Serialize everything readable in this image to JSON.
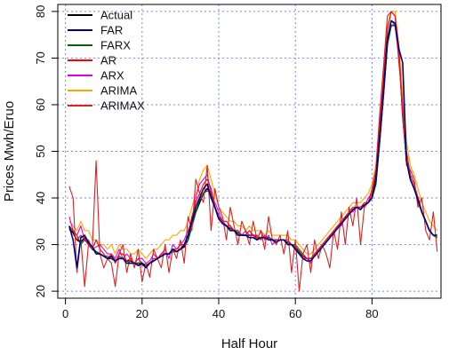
{
  "chart_data": {
    "type": "line",
    "title": "",
    "xlabel": "Half Hour",
    "ylabel": "Prices Mwh/Eruo",
    "xlim": [
      -2,
      98
    ],
    "ylim": [
      18.5,
      81.5
    ],
    "xticks": [
      0,
      20,
      40,
      60,
      80
    ],
    "yticks": [
      20,
      30,
      40,
      50,
      60,
      70,
      80
    ],
    "grid": true,
    "grid_color": "#8080ff",
    "legend_position": "top-left",
    "series": [
      {
        "name": "Actual",
        "color": "#000000",
        "values": [
          33.5,
          32.5,
          31,
          30.5,
          31.5,
          30,
          29,
          28.5,
          28,
          27.5,
          27,
          27,
          26.5,
          27,
          27,
          26.5,
          26.5,
          26,
          26,
          26,
          25.5,
          26,
          26.5,
          27,
          27.5,
          28,
          28,
          28.5,
          28.5,
          29,
          29.5,
          31,
          34,
          37,
          39,
          41,
          42,
          41,
          38,
          36,
          35,
          34,
          33.5,
          33,
          32.5,
          32,
          32,
          32,
          32,
          31.5,
          31.5,
          31.5,
          31.5,
          31,
          31,
          31,
          31,
          30.5,
          30,
          29.5,
          28.5,
          27.5,
          27,
          27,
          27.5,
          28.5,
          29.5,
          30.5,
          31.5,
          32.5,
          33.5,
          34.5,
          35.5,
          36.5,
          37.5,
          38,
          38,
          38.5,
          39,
          40,
          43,
          52,
          62,
          73,
          77,
          77,
          72,
          58,
          48,
          44,
          42,
          40,
          37,
          35,
          33,
          32,
          31.5
        ]
      },
      {
        "name": "FAR",
        "color": "#000080",
        "values": [
          34,
          31,
          25,
          31.5,
          32,
          30.5,
          29.5,
          28,
          28,
          27.5,
          27,
          27.5,
          26.5,
          27,
          27,
          26,
          26,
          26,
          25.5,
          26,
          25,
          26,
          26.5,
          27,
          27.5,
          28,
          28,
          29,
          28.5,
          29,
          30,
          32,
          35,
          38,
          40,
          42,
          43,
          40,
          38,
          35.5,
          34.5,
          34,
          33,
          33,
          32,
          32,
          32,
          31.5,
          31.5,
          31,
          31.5,
          31.5,
          31,
          31,
          30.5,
          31,
          31,
          30,
          30,
          29,
          28,
          27,
          26.5,
          26.5,
          27.5,
          28.5,
          29.5,
          30.5,
          31.5,
          32.5,
          33.5,
          34.5,
          35.5,
          36.5,
          37.5,
          38,
          37.5,
          38.5,
          39,
          40,
          44,
          53,
          63,
          74,
          78,
          77.5,
          72,
          69,
          48,
          44,
          42,
          39.5,
          37,
          35,
          33,
          32,
          32
        ]
      },
      {
        "name": "FARX",
        "color": "#006400",
        "values": [
          33,
          33,
          32,
          30,
          31,
          30.5,
          29.5,
          28.5,
          28,
          27.5,
          27.5,
          27,
          26.5,
          27.5,
          27,
          26.5,
          26,
          26,
          26,
          25.5,
          25.5,
          26,
          26.5,
          27,
          27.5,
          28,
          28,
          28.5,
          28.5,
          29,
          30,
          31,
          34,
          37,
          39.5,
          41,
          41.5,
          41,
          38,
          36,
          35,
          34,
          33.5,
          33,
          32.5,
          32,
          32,
          32,
          32,
          31.5,
          31.5,
          31.5,
          31.5,
          31,
          31,
          31,
          31,
          30.5,
          30,
          29.5,
          28.5,
          27.5,
          27,
          27,
          27.5,
          28.5,
          29.5,
          30.5,
          31.5,
          32.5,
          33.5,
          34.5,
          35.5,
          36.5,
          37.5,
          38,
          38,
          38.5,
          39,
          40,
          43,
          52,
          62,
          73,
          77,
          77,
          71,
          57,
          48,
          44,
          42,
          40,
          37,
          35,
          33,
          32,
          31.5
        ]
      },
      {
        "name": "AR",
        "color": "#ff0000",
        "values": [
          34,
          33,
          31,
          32,
          31,
          30,
          29,
          31,
          29,
          28,
          27,
          28,
          26,
          28,
          28,
          26.5,
          27,
          26,
          27,
          26,
          25,
          26,
          27,
          27,
          28,
          28,
          28,
          29,
          29,
          30,
          30,
          32,
          36,
          39,
          41,
          43,
          44,
          42,
          38,
          36,
          35,
          35,
          34,
          33,
          33,
          32,
          32,
          33,
          32,
          32,
          31,
          32,
          31,
          31,
          31,
          31,
          31,
          31,
          30,
          30,
          29,
          28,
          27,
          27,
          28,
          29,
          30,
          31,
          32,
          33,
          34,
          35,
          36,
          37,
          38,
          38,
          38,
          39,
          39,
          41,
          45,
          55,
          65,
          76,
          80,
          79,
          72,
          58,
          50,
          45,
          43,
          40,
          37,
          35,
          33,
          32,
          32
        ]
      },
      {
        "name": "ARX",
        "color": "#e000e0",
        "values": [
          36,
          33,
          32,
          34,
          31,
          31,
          29,
          29.5,
          30,
          29,
          28,
          28,
          27,
          29,
          27,
          28,
          27,
          26,
          27,
          27,
          26,
          26.5,
          28,
          27,
          28,
          29,
          27,
          30,
          29,
          30,
          31,
          33,
          35,
          40,
          43,
          44,
          45,
          41,
          39,
          37,
          35,
          34,
          34,
          33,
          33,
          32,
          33,
          32,
          32,
          31,
          33,
          31,
          32,
          30,
          31,
          31,
          31,
          30,
          30,
          29,
          28,
          27,
          27,
          26,
          28,
          29,
          30,
          31,
          32,
          32,
          34,
          34,
          36,
          37,
          37,
          38,
          38,
          38,
          40,
          41,
          44,
          52,
          62,
          74,
          78,
          77,
          70,
          58,
          48,
          45,
          43,
          39,
          37,
          35,
          33,
          32,
          32
        ]
      },
      {
        "name": "ARIMA",
        "color": "#ffa500",
        "values": [
          35,
          34,
          33,
          35,
          33,
          33,
          31,
          31,
          30,
          30,
          29,
          30,
          28,
          30,
          29,
          29,
          28,
          28,
          29,
          28,
          27,
          28,
          29,
          29,
          30,
          31,
          31,
          32,
          32,
          33,
          33,
          35,
          38,
          41,
          44,
          46,
          47,
          44,
          41,
          38,
          37,
          36,
          35,
          35,
          34,
          34,
          33,
          34,
          33,
          33,
          33,
          32,
          33,
          32,
          32,
          32,
          32,
          32,
          31,
          31,
          30,
          29,
          28,
          28,
          29,
          30,
          31,
          32,
          33,
          34,
          35,
          36,
          37,
          38,
          39,
          39,
          39,
          40,
          41,
          43,
          47,
          57,
          66,
          77,
          80,
          80,
          73,
          62,
          52,
          47,
          45,
          42,
          39,
          37,
          35,
          34,
          33
        ]
      },
      {
        "name": "ARIMAX",
        "color": "#dd2222",
        "values": [
          42.5,
          40,
          24,
          31,
          21,
          30,
          29,
          48,
          28,
          25,
          27,
          26,
          21,
          28,
          30,
          24,
          28,
          25,
          29,
          22,
          26,
          23,
          29,
          27,
          25,
          30,
          24,
          29,
          27,
          31,
          26,
          36,
          33,
          44,
          41,
          39,
          47,
          33,
          42,
          38,
          36,
          31,
          38,
          34,
          30,
          35,
          33,
          30,
          35,
          31,
          33,
          29,
          36,
          31,
          30,
          32,
          28,
          33,
          24,
          31,
          20,
          28,
          30,
          24,
          31,
          27,
          30,
          28,
          25,
          33,
          29,
          37,
          30,
          38,
          34,
          40,
          30,
          38,
          39,
          42,
          46,
          58,
          68,
          79,
          80,
          79,
          69,
          60,
          47,
          46,
          44,
          38,
          40,
          33,
          31,
          37,
          28.5
        ]
      }
    ]
  }
}
